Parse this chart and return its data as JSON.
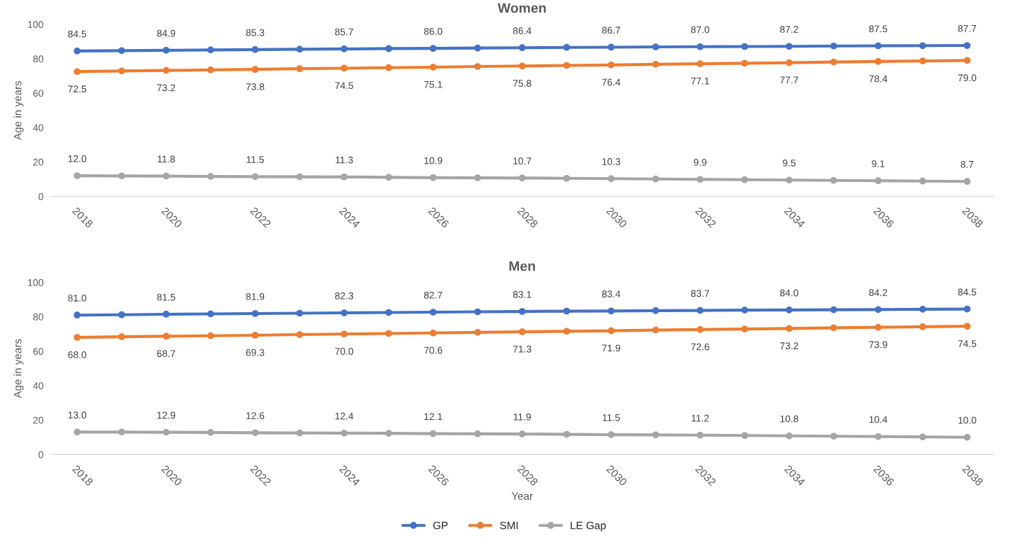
{
  "chart_data": [
    {
      "type": "line",
      "title": "Women",
      "ylabel": "Age in years",
      "legend": "bottom",
      "categories": [
        "2018",
        null,
        "2020",
        null,
        "2022",
        null,
        "2024",
        null,
        "2026",
        null,
        "2028",
        null,
        "2030",
        null,
        "2032",
        null,
        "2034",
        null,
        "2036",
        null,
        "2038"
      ],
      "ylim": [
        0,
        100
      ],
      "yticks": [
        0,
        20,
        40,
        60,
        80,
        100
      ],
      "marker": "circle",
      "line_style": "solid",
      "series": [
        {
          "name": "GP",
          "color": "#4472c4",
          "values": [
            84.5,
            84.7,
            84.9,
            85.1,
            85.3,
            85.5,
            85.7,
            85.9,
            86.0,
            86.2,
            86.4,
            86.6,
            86.7,
            86.9,
            87.0,
            87.1,
            87.2,
            87.4,
            87.5,
            87.6,
            87.7
          ],
          "value_labels": [
            "84.5",
            null,
            "84.9",
            null,
            "85.3",
            null,
            "85.7",
            null,
            "86.0",
            null,
            "86.4",
            null,
            "86.7",
            null,
            "87.0",
            null,
            "87.2",
            null,
            "87.5",
            null,
            "87.7"
          ]
        },
        {
          "name": "SMI",
          "color": "#ed7d31",
          "values": [
            72.5,
            72.9,
            73.2,
            73.5,
            73.8,
            74.2,
            74.5,
            74.8,
            75.1,
            75.5,
            75.8,
            76.1,
            76.4,
            76.8,
            77.1,
            77.4,
            77.7,
            78.1,
            78.4,
            78.7,
            79.0
          ],
          "value_labels": [
            "72.5",
            null,
            "73.2",
            null,
            "73.8",
            null,
            "74.5",
            null,
            "75.1",
            null,
            "75.8",
            null,
            "76.4",
            null,
            "77.1",
            null,
            "77.7",
            null,
            "78.4",
            null,
            "79.0"
          ]
        },
        {
          "name": "LE Gap",
          "color": "#a5a5a5",
          "values": [
            12.0,
            11.9,
            11.8,
            11.6,
            11.5,
            11.4,
            11.3,
            11.1,
            10.9,
            10.8,
            10.7,
            10.5,
            10.3,
            10.1,
            9.9,
            9.7,
            9.5,
            9.3,
            9.1,
            8.9,
            8.7
          ],
          "value_labels": [
            "12.0",
            null,
            "11.8",
            null,
            "11.5",
            null,
            "11.3",
            null,
            "10.9",
            null,
            "10.7",
            null,
            "10.3",
            null,
            "9.9",
            null,
            "9.5",
            null,
            "9.1",
            null,
            "8.7"
          ]
        }
      ]
    },
    {
      "type": "line",
      "title": "Men",
      "ylabel": "Age in years",
      "xlabel": "Year",
      "categories": [
        "2018",
        null,
        "2020",
        null,
        "2022",
        null,
        "2024",
        null,
        "2026",
        null,
        "2028",
        null,
        "2030",
        null,
        "2032",
        null,
        "2034",
        null,
        "2036",
        null,
        "2038"
      ],
      "ylim": [
        0,
        100
      ],
      "yticks": [
        0,
        20,
        40,
        60,
        80,
        100
      ],
      "marker": "circle",
      "line_style": "solid",
      "legend": "bottom",
      "series": [
        {
          "name": "GP",
          "color": "#4472c4",
          "values": [
            81.0,
            81.2,
            81.5,
            81.7,
            81.9,
            82.1,
            82.3,
            82.5,
            82.7,
            82.9,
            83.1,
            83.3,
            83.4,
            83.6,
            83.7,
            83.9,
            84.0,
            84.1,
            84.2,
            84.4,
            84.5
          ],
          "value_labels": [
            "81.0",
            null,
            "81.5",
            null,
            "81.9",
            null,
            "82.3",
            null,
            "82.7",
            null,
            "83.1",
            null,
            "83.4",
            null,
            "83.7",
            null,
            "84.0",
            null,
            "84.2",
            null,
            "84.5"
          ]
        },
        {
          "name": "SMI",
          "color": "#ed7d31",
          "values": [
            68.0,
            68.4,
            68.7,
            69.0,
            69.3,
            69.7,
            70.0,
            70.3,
            70.6,
            71.0,
            71.3,
            71.6,
            71.9,
            72.3,
            72.6,
            72.9,
            73.2,
            73.6,
            73.9,
            74.2,
            74.5
          ],
          "value_labels": [
            "68.0",
            null,
            "68.7",
            null,
            "69.3",
            null,
            "70.0",
            null,
            "70.6",
            null,
            "71.3",
            null,
            "71.9",
            null,
            "72.6",
            null,
            "73.2",
            null,
            "73.9",
            null,
            "74.5"
          ]
        },
        {
          "name": "LE Gap",
          "color": "#a5a5a5",
          "values": [
            13.0,
            13.0,
            12.9,
            12.8,
            12.6,
            12.5,
            12.4,
            12.3,
            12.1,
            12.0,
            11.9,
            11.7,
            11.5,
            11.4,
            11.2,
            11.0,
            10.8,
            10.6,
            10.4,
            10.2,
            10.0
          ],
          "value_labels": [
            "13.0",
            null,
            "12.9",
            null,
            "12.6",
            null,
            "12.4",
            null,
            "12.1",
            null,
            "11.9",
            null,
            "11.5",
            null,
            "11.2",
            null,
            "10.8",
            null,
            "10.4",
            null,
            "10.0"
          ]
        }
      ]
    }
  ]
}
